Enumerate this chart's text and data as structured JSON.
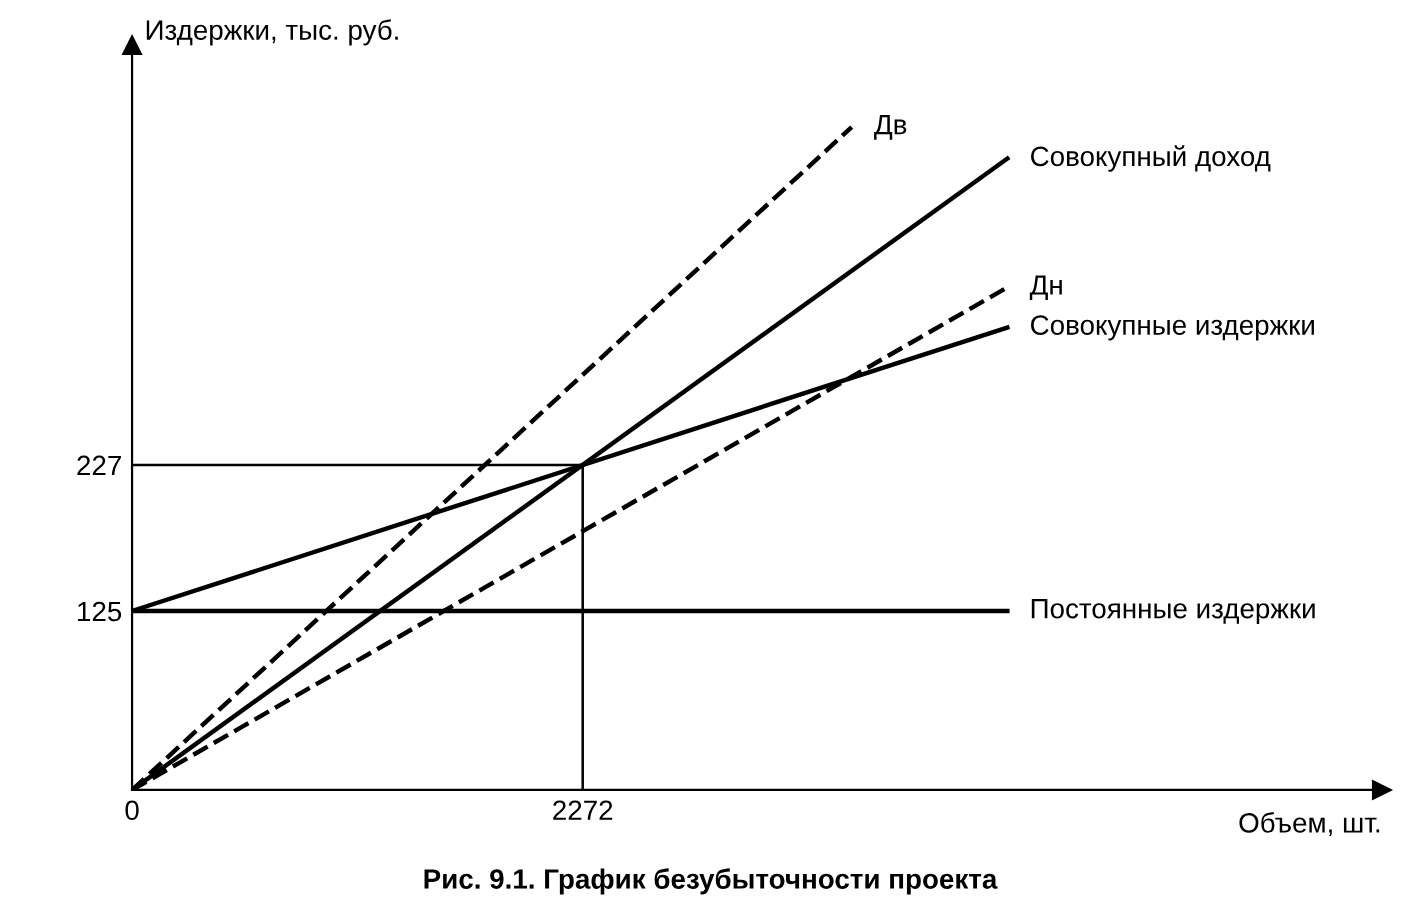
{
  "chart_data": {
    "type": "line",
    "title": "Рис. 9.1. График безубыточности проекта",
    "xlabel": "Объем, шт.",
    "ylabel": "Издержки, тыс. руб.",
    "xlim": [
      0,
      6300
    ],
    "ylim": [
      0,
      520
    ],
    "xticks": [
      0,
      2272
    ],
    "yticks": [
      125,
      227
    ],
    "grid": false,
    "legend": false,
    "marker": "none",
    "series": [
      {
        "name": "Дв",
        "color": "#000000",
        "line_style": "dashed",
        "x": [
          0,
          3628
        ],
        "values": [
          0,
          463
        ]
      },
      {
        "name": "Совокупный доход",
        "color": "#000000",
        "line_style": "solid",
        "x": [
          0,
          4413
        ],
        "values": [
          0,
          441
        ]
      },
      {
        "name": "Дн",
        "color": "#000000",
        "line_style": "dashed",
        "x": [
          0,
          4413
        ],
        "values": [
          0,
          351
        ]
      },
      {
        "name": "Совокупные издержки",
        "color": "#000000",
        "line_style": "solid",
        "x": [
          0,
          4413
        ],
        "values": [
          125,
          323
        ]
      },
      {
        "name": "Постоянные издержки",
        "color": "#000000",
        "line_style": "solid",
        "x": [
          0,
          4413
        ],
        "values": [
          125,
          125
        ]
      },
      {
        "color": "#000000",
        "line_style": "solid",
        "x": [
          0,
          2272,
          2272
        ],
        "values": [
          227,
          227,
          0
        ]
      }
    ]
  }
}
